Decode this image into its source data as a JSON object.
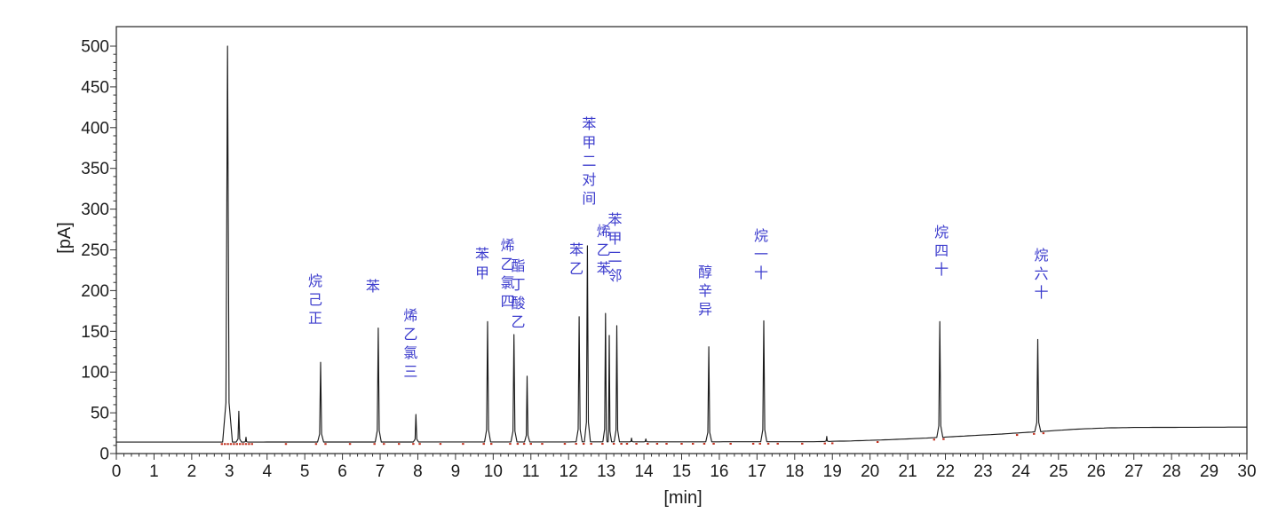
{
  "axes": {
    "y_title": "[pA]",
    "x_title": "[min]",
    "y_tick_labels": [
      "0",
      "50",
      "100",
      "150",
      "200",
      "250",
      "300",
      "350",
      "400",
      "450",
      "500"
    ],
    "x_tick_labels": [
      "0",
      "1",
      "2",
      "3",
      "4",
      "5",
      "6",
      "7",
      "8",
      "9",
      "10",
      "11",
      "12",
      "13",
      "14",
      "15",
      "16",
      "17",
      "18",
      "19",
      "20",
      "21",
      "22",
      "23",
      "24",
      "25",
      "26",
      "27",
      "28",
      "29",
      "30"
    ]
  },
  "chart_data": {
    "type": "line",
    "title": "",
    "xlabel": "[min]",
    "ylabel": "[pA]",
    "xlim": [
      0,
      30
    ],
    "ylim": [
      0,
      520
    ],
    "grid": false,
    "x_major_step": 1,
    "x_minor_step": 0.2,
    "y_major_step": 50,
    "y_minor_step": 10,
    "trace_color": "#1c1c1c",
    "frame_color": "#333333",
    "label_color": "#3c3ccd",
    "mark_color": "#c22f1d",
    "baseline_pA": [
      [
        0,
        14
      ],
      [
        18.5,
        14.5
      ],
      [
        19.5,
        15.5
      ],
      [
        20.5,
        17
      ],
      [
        21.5,
        19
      ],
      [
        22.5,
        21.5
      ],
      [
        23.5,
        24
      ],
      [
        24.5,
        27
      ],
      [
        25.5,
        30
      ],
      [
        26.3,
        31.5
      ],
      [
        27,
        32
      ],
      [
        30,
        32.5
      ]
    ],
    "peaks": [
      {
        "t": 2.95,
        "pA": 500,
        "w": 0.13,
        "label": null
      },
      {
        "t": 3.25,
        "pA": 52,
        "w": 0.07,
        "label": null
      },
      {
        "t": 3.44,
        "pA": 20,
        "w": 0.05,
        "label": null
      },
      {
        "t": 5.42,
        "pA": 112,
        "w": 0.08,
        "label": "正己烷",
        "gap": 38,
        "dx": -6
      },
      {
        "t": 6.95,
        "pA": 154,
        "w": 0.08,
        "label": "苯",
        "gap": 36,
        "dx": -6
      },
      {
        "t": 7.95,
        "pA": 48,
        "w": 0.07,
        "label": "三氯乙烯",
        "gap": 37,
        "dx": -6
      },
      {
        "t": 9.85,
        "pA": 162,
        "w": 0.08,
        "label": "甲苯",
        "gap": 43,
        "dx": -6
      },
      {
        "t": 10.55,
        "pA": 146,
        "w": 0.08,
        "label": "四氯乙烯",
        "gap": 26,
        "dx": -7
      },
      {
        "t": 10.9,
        "pA": 95,
        "w": 0.07,
        "label": "乙酸丁酯",
        "gap": 50,
        "dx": -10
      },
      {
        "t": 12.28,
        "pA": 168,
        "w": 0.08,
        "label": "乙苯",
        "gap": 43,
        "dx": -3
      },
      {
        "t": 12.5,
        "pA": 255,
        "w": 0.08,
        "label": "间对二甲苯",
        "gap": 42,
        "dx": 2
      },
      {
        "t": 12.98,
        "pA": 172,
        "w": 0.07,
        "label": "苯乙烯",
        "gap": 39,
        "dx": -2
      },
      {
        "t": 13.08,
        "pA": 145,
        "w": 0.06,
        "label": null
      },
      {
        "t": 13.28,
        "pA": 157,
        "w": 0.07,
        "label": "邻二甲苯",
        "gap": 45,
        "dx": -2
      },
      {
        "t": 13.67,
        "pA": 19,
        "w": 0.05,
        "label": null
      },
      {
        "t": 14.05,
        "pA": 18,
        "w": 0.05,
        "label": null
      },
      {
        "t": 15.72,
        "pA": 131,
        "w": 0.08,
        "label": "异辛醇",
        "gap": 31,
        "dx": -4
      },
      {
        "t": 17.18,
        "pA": 163,
        "w": 0.08,
        "label": "十一烷",
        "gap": 42,
        "dx": -3
      },
      {
        "t": 18.85,
        "pA": 21,
        "w": 0.05,
        "label": null
      },
      {
        "t": 21.85,
        "pA": 162,
        "w": 0.08,
        "label": "十四烷",
        "gap": 47,
        "dx": 2
      },
      {
        "t": 24.45,
        "pA": 140,
        "w": 0.08,
        "label": "十六烷",
        "gap": 41,
        "dx": 4
      }
    ],
    "integration_marks_t": [
      2.8,
      2.88,
      2.96,
      3.04,
      3.12,
      3.2,
      3.28,
      3.36,
      3.44,
      3.52,
      3.6,
      4.5,
      5.3,
      5.55,
      6.2,
      6.85,
      7.1,
      7.5,
      7.88,
      8.05,
      8.6,
      9.2,
      9.75,
      9.95,
      10.45,
      10.65,
      10.82,
      11.0,
      11.3,
      11.9,
      12.2,
      12.4,
      12.6,
      12.9,
      13.2,
      13.4,
      13.55,
      13.8,
      14.1,
      14.35,
      14.6,
      15.0,
      15.3,
      15.6,
      15.85,
      16.3,
      16.9,
      17.08,
      17.3,
      17.55,
      18.2,
      18.8,
      19.0,
      20.2,
      21.7,
      21.95,
      23.9,
      24.35,
      24.6
    ]
  }
}
